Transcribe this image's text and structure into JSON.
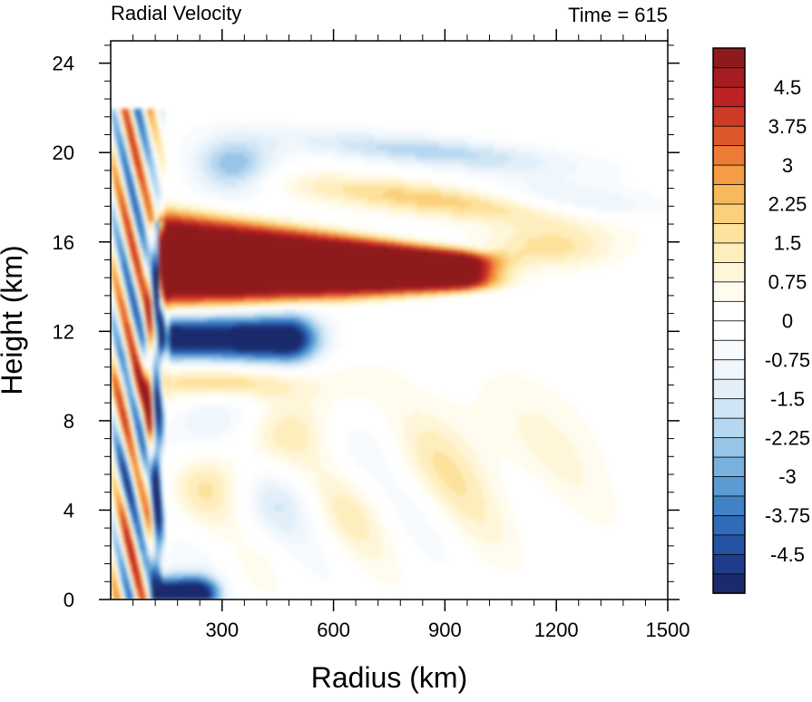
{
  "chart_data": {
    "type": "heatmap",
    "title": "Radial Velocity",
    "subtitle": "Time = 615",
    "xlabel": "Radius (km)",
    "ylabel": "Height (km)",
    "xlim": [
      0,
      1500
    ],
    "ylim": [
      0,
      25
    ],
    "x_ticks": [
      300,
      600,
      900,
      1200,
      1500
    ],
    "y_ticks": [
      0,
      4,
      8,
      12,
      16,
      20,
      24
    ],
    "x_tick_labels": [
      "300",
      "600",
      "900",
      "1200",
      "1500"
    ],
    "y_tick_labels": [
      "0",
      "4",
      "8",
      "12",
      "16",
      "20",
      "24"
    ],
    "colorbar": {
      "min": -5.25,
      "max": 5.25,
      "step": 0.375,
      "labels": [
        "4.5",
        "3.75",
        "3",
        "2.25",
        "1.5",
        "0.75",
        "0",
        "-0.75",
        "-1.5",
        "-2.25",
        "-3",
        "-3.75",
        "-4.5"
      ],
      "label_values": [
        4.5,
        3.75,
        3,
        2.25,
        1.5,
        0.75,
        0,
        -0.75,
        -1.5,
        -2.25,
        -3,
        -3.75,
        -4.5
      ],
      "colors": [
        "#1a2a6c",
        "#1f3d8c",
        "#2652a3",
        "#2f6bb8",
        "#3f83c6",
        "#5a9bd3",
        "#78b1de",
        "#98c5e7",
        "#b6d7ef",
        "#cfe5f5",
        "#e2eff9",
        "#eff6fc",
        "#f8fbfe",
        "#ffffff",
        "#ffffff",
        "#fffcef",
        "#fff6d9",
        "#ffeebd",
        "#fde29e",
        "#fbd07c",
        "#f8b95c",
        "#f49c46",
        "#ec7b36",
        "#df582c",
        "#cf3a27",
        "#bd2224",
        "#a51c21",
        "#8f1a1c"
      ]
    },
    "features": [
      {
        "kind": "outflow-core",
        "r": [
          130,
          1000
        ],
        "z": [
          13.5,
          16.8
        ],
        "value": 5.3
      },
      {
        "kind": "inflow-band",
        "r": [
          130,
          560
        ],
        "z": [
          10.8,
          12.6
        ],
        "value": -5.0
      },
      {
        "kind": "boundary-layer-inflow",
        "r": [
          130,
          350
        ],
        "z": [
          0,
          0.9
        ],
        "value": -5.0
      },
      {
        "kind": "outflow-weak",
        "r": [
          600,
          1300
        ],
        "z": [
          17,
          19
        ],
        "value": 2.0
      },
      {
        "kind": "inflow-weak",
        "r": [
          700,
          1400
        ],
        "z": [
          19.5,
          21
        ],
        "value": -2.0
      }
    ]
  }
}
